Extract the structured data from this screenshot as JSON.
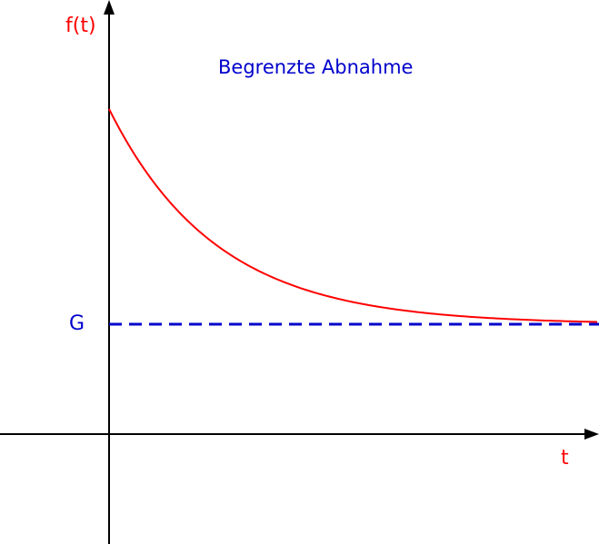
{
  "title": "Begrenzte Abnahme",
  "y_axis_label": "f(t)",
  "x_axis_label": "t",
  "limit_label": "G",
  "colors": {
    "axes": "#000000",
    "curve": "#ff0000",
    "limit_line": "#0000cc",
    "title": "#0000cc",
    "axis_labels": "#ff0000"
  },
  "curve": {
    "kind": "bounded exponential decay toward G",
    "limit_line_style": "dashed"
  }
}
